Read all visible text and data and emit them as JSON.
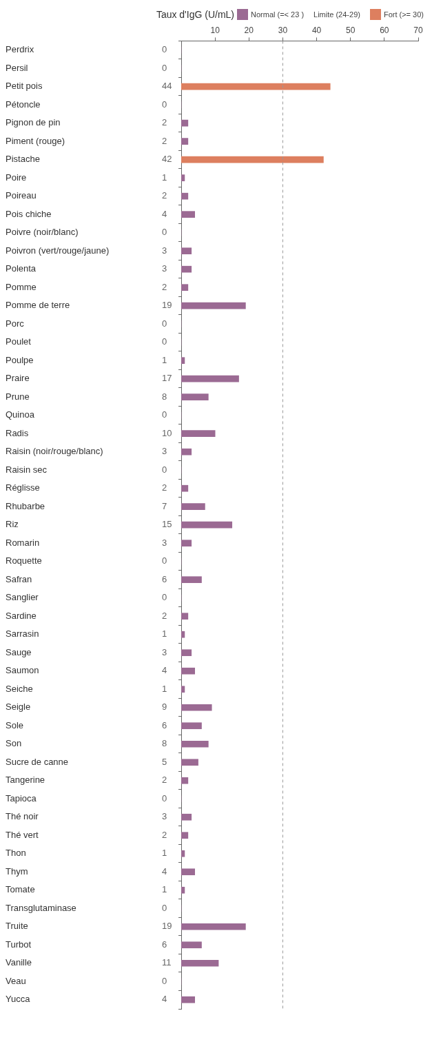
{
  "chart_data": {
    "type": "bar",
    "orientation": "horizontal",
    "legend_title": "Taux d'IgG (U/mL)",
    "legend": "top",
    "categories": [
      "Perdrix",
      "Persil",
      "Petit pois",
      "Pétoncle",
      "Pignon de pin",
      "Piment (rouge)",
      "Pistache",
      "Poire",
      "Poireau",
      "Pois chiche",
      "Poivre (noir/blanc)",
      "Poivron (vert/rouge/jaune)",
      "Polenta",
      "Pomme",
      "Pomme de terre",
      "Porc",
      "Poulet",
      "Poulpe",
      "Praire",
      "Prune",
      "Quinoa",
      "Radis",
      "Raisin (noir/rouge/blanc)",
      "Raisin sec",
      "Réglisse",
      "Rhubarbe",
      "Riz",
      "Romarin",
      "Roquette",
      "Safran",
      "Sanglier",
      "Sardine",
      "Sarrasin",
      "Sauge",
      "Saumon",
      "Seiche",
      "Seigle",
      "Sole",
      "Son",
      "Sucre de canne",
      "Tangerine",
      "Tapioca",
      "Thé noir",
      "Thé vert",
      "Thon",
      "Thym",
      "Tomate",
      "Transglutaminase",
      "Truite",
      "Turbot",
      "Vanille",
      "Veau",
      "Yucca"
    ],
    "series": [
      {
        "name": "Normal (=< 23 )",
        "color": "#9b6a93",
        "values": [
          0,
          0,
          null,
          0,
          2,
          2,
          null,
          1,
          2,
          4,
          0,
          3,
          3,
          2,
          19,
          0,
          0,
          1,
          17,
          8,
          0,
          10,
          3,
          0,
          2,
          7,
          15,
          3,
          0,
          6,
          0,
          2,
          1,
          3,
          4,
          1,
          9,
          6,
          8,
          5,
          2,
          0,
          3,
          2,
          1,
          4,
          1,
          0,
          19,
          6,
          11,
          0,
          4
        ]
      },
      {
        "name": "Limite (24-29)",
        "values": [
          null,
          null,
          null,
          null,
          null,
          null,
          null,
          null,
          null,
          null,
          null,
          null,
          null,
          null,
          null,
          null,
          null,
          null,
          null,
          null,
          null,
          null,
          null,
          null,
          null,
          null,
          null,
          null,
          null,
          null,
          null,
          null,
          null,
          null,
          null,
          null,
          null,
          null,
          null,
          null,
          null,
          null,
          null,
          null,
          null,
          null,
          null,
          null,
          null,
          null,
          null,
          null,
          null
        ]
      },
      {
        "name": "Fort (>= 30)",
        "color": "#dd7f5f",
        "values": [
          null,
          null,
          44,
          null,
          null,
          null,
          42,
          null,
          null,
          null,
          null,
          null,
          null,
          null,
          null,
          null,
          null,
          null,
          null,
          null,
          null,
          null,
          null,
          null,
          null,
          null,
          null,
          null,
          null,
          null,
          null,
          null,
          null,
          null,
          null,
          null,
          null,
          null,
          null,
          null,
          null,
          null,
          null,
          null,
          null,
          null,
          null,
          null,
          null,
          null,
          null,
          null,
          null
        ]
      }
    ],
    "x2lim": [
      0,
      70
    ],
    "x2ticks": [
      10,
      20,
      30,
      40,
      50,
      60,
      70
    ],
    "grid": false,
    "data_labels": true,
    "ref_lines": [
      {
        "axis": "x",
        "value": 30,
        "color": "#999999",
        "line_style": "dashed"
      }
    ]
  }
}
